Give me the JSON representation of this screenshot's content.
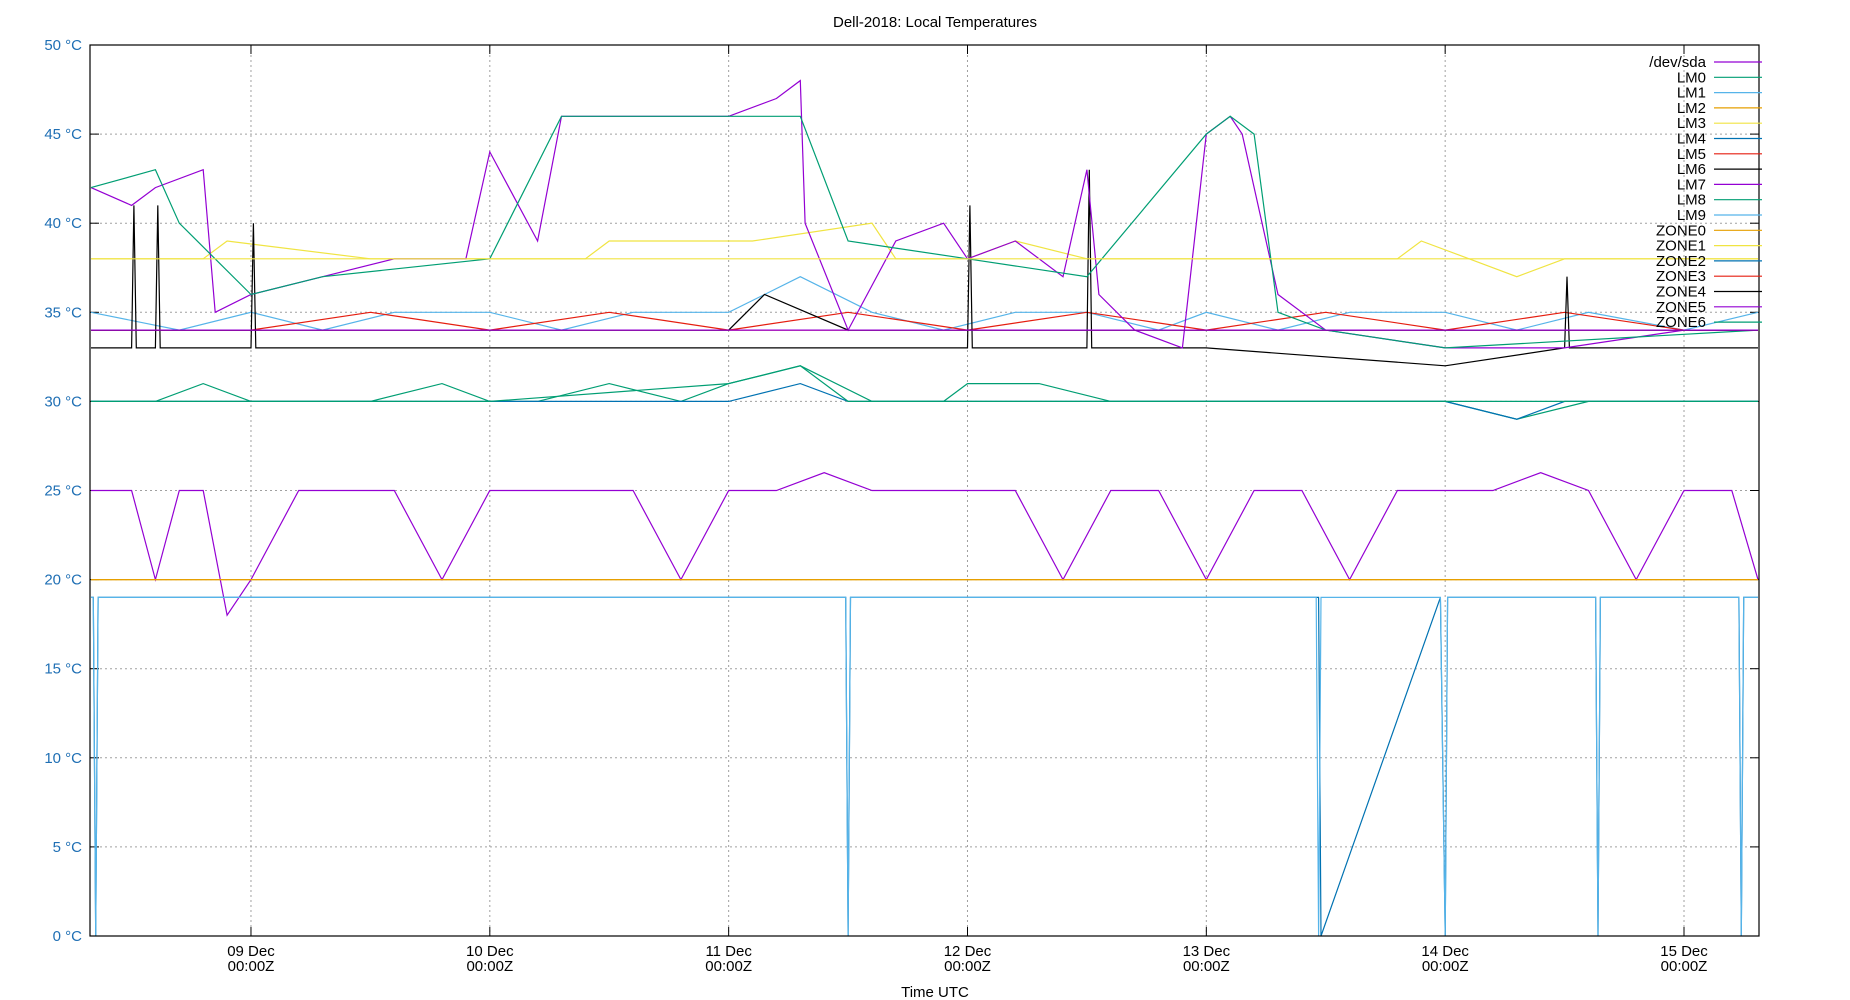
{
  "chart_data": {
    "type": "line",
    "title": "Dell-2018: Local Temperatures",
    "xlabel": "Time UTC",
    "ylabel": "",
    "ylim": [
      0,
      50
    ],
    "y_unit": "°C",
    "yticks": [
      "0 °C",
      "5 °C",
      "10 °C",
      "15 °C",
      "20 °C",
      "25 °C",
      "30 °C",
      "35 °C",
      "40 °C",
      "45 °C",
      "50 °C"
    ],
    "xlim_days": [
      -0.674,
      6.314
    ],
    "xticks": [
      {
        "day": 0,
        "line1": "09 Dec",
        "line2": "00:00Z"
      },
      {
        "day": 1,
        "line1": "10 Dec",
        "line2": "00:00Z"
      },
      {
        "day": 2,
        "line1": "11 Dec",
        "line2": "00:00Z"
      },
      {
        "day": 3,
        "line1": "12 Dec",
        "line2": "00:00Z"
      },
      {
        "day": 4,
        "line1": "13 Dec",
        "line2": "00:00Z"
      },
      {
        "day": 5,
        "line1": "14 Dec",
        "line2": "00:00Z"
      },
      {
        "day": 6,
        "line1": "15 Dec",
        "line2": "00:00Z"
      }
    ],
    "grid": true,
    "legend_position": "top-right-inside",
    "x_note": "x values are days relative to 09 Dec 00:00Z",
    "series": [
      {
        "name": "/dev/sda",
        "color": "#9400d3",
        "x": [
          -0.67,
          -0.5,
          -0.4,
          -0.3,
          -0.2,
          -0.1,
          0.0,
          0.2,
          0.4,
          0.6,
          0.8,
          1.0,
          1.1,
          1.2,
          1.4,
          1.6,
          1.8,
          2.0,
          2.2,
          2.4,
          2.6,
          2.8,
          2.9,
          3.0,
          3.2,
          3.4,
          3.6,
          3.8,
          4.0,
          4.2,
          4.4,
          4.6,
          4.8,
          5.0,
          5.2,
          5.4,
          5.6,
          5.8,
          6.0,
          6.2,
          6.31
        ],
        "y": [
          25,
          25,
          20,
          25,
          25,
          18,
          20,
          25,
          25,
          25,
          20,
          25,
          25,
          25,
          25,
          25,
          20,
          25,
          25,
          26,
          25,
          25,
          25,
          25,
          25,
          20,
          25,
          25,
          20,
          25,
          25,
          20,
          25,
          25,
          25,
          26,
          25,
          20,
          25,
          25,
          20
        ]
      },
      {
        "name": "LM0",
        "color": "#009e73",
        "x": [
          -0.67,
          -0.4,
          -0.2,
          0.0,
          0.2,
          0.5,
          0.8,
          1.0,
          1.2,
          1.5,
          1.8,
          2.0,
          2.3,
          2.6,
          2.9,
          3.0,
          3.3,
          3.6,
          3.9,
          4.0,
          4.3,
          4.6,
          5.0,
          5.3,
          5.6,
          6.0,
          6.31
        ],
        "y": [
          30,
          30,
          31,
          30,
          30,
          30,
          31,
          30,
          30,
          31,
          30,
          31,
          32,
          30,
          30,
          31,
          31,
          30,
          30,
          30,
          30,
          30,
          30,
          29,
          30,
          30,
          30
        ]
      },
      {
        "name": "LM1",
        "color": "#56b4e9",
        "x": [
          -0.67,
          -0.3,
          0.0,
          0.3,
          0.6,
          1.0,
          1.3,
          1.6,
          2.0,
          2.3,
          2.6,
          2.9,
          3.2,
          3.5,
          3.8,
          4.0,
          4.3,
          4.6,
          5.0,
          5.3,
          5.6,
          6.0,
          6.31
        ],
        "y": [
          35,
          34,
          35,
          34,
          35,
          35,
          34,
          35,
          35,
          37,
          35,
          34,
          35,
          35,
          34,
          35,
          34,
          35,
          35,
          34,
          35,
          34,
          35
        ]
      },
      {
        "name": "LM2",
        "color": "#e69f00",
        "x": [
          -0.67,
          6.31
        ],
        "y": [
          20,
          20
        ]
      },
      {
        "name": "LM3",
        "color": "#f0e442",
        "x": [
          -0.67,
          -0.2,
          -0.1,
          0.5,
          1.0,
          1.4,
          1.5,
          2.0,
          2.1,
          2.6,
          2.7,
          3.0,
          3.2,
          3.5,
          4.0,
          4.4,
          4.8,
          4.9,
          5.1,
          5.3,
          5.5,
          6.31
        ],
        "y": [
          38,
          38,
          39,
          38,
          38,
          38,
          39,
          39,
          39,
          40,
          38,
          38,
          39,
          38,
          38,
          38,
          38,
          39,
          38,
          37,
          38,
          38
        ]
      },
      {
        "name": "LM4",
        "color": "#0072b2",
        "x": [
          -0.67,
          -0.66,
          -0.65,
          -0.64,
          0.0,
          2.49,
          2.5,
          2.51,
          4.46,
          4.47,
          4.48,
          4.98,
          5.0,
          5.01,
          5.63,
          5.64,
          5.65,
          6.23,
          6.24,
          6.25,
          6.31
        ],
        "y": [
          19,
          19,
          0,
          19,
          19,
          19,
          0,
          19,
          19,
          19,
          0,
          19,
          0,
          19,
          19,
          0,
          19,
          19,
          0,
          19,
          19
        ]
      },
      {
        "name": "LM5",
        "color": "#e51e10",
        "x": [
          -0.67,
          0.0,
          0.5,
          1.0,
          1.5,
          2.0,
          2.5,
          3.0,
          3.5,
          4.0,
          4.5,
          5.0,
          5.5,
          6.0,
          6.31
        ],
        "y": [
          34,
          34,
          35,
          34,
          35,
          34,
          35,
          34,
          35,
          34,
          35,
          34,
          35,
          34,
          34
        ]
      },
      {
        "name": "LM6",
        "color": "#000000",
        "x": [
          -0.67,
          -0.5,
          -0.49,
          -0.48,
          -0.4,
          -0.39,
          -0.38,
          0.0,
          0.01,
          0.02,
          1.0,
          2.0,
          2.5,
          3.0,
          3.01,
          3.02,
          3.5,
          3.51,
          3.52,
          4.0,
          5.0,
          5.5,
          5.51,
          5.52,
          6.31
        ],
        "y": [
          33,
          33,
          41,
          33,
          33,
          41,
          33,
          33,
          40,
          33,
          33,
          33,
          33,
          33,
          41,
          33,
          33,
          43,
          33,
          33,
          32,
          33,
          37,
          33,
          33
        ]
      },
      {
        "name": "LM7",
        "color": "#9400d3",
        "x": [
          -0.67,
          -0.5,
          -0.4,
          -0.2,
          -0.15,
          0.0,
          0.3,
          0.6,
          0.9,
          1.0,
          1.2,
          1.3,
          1.5,
          1.8,
          2.0,
          2.2,
          2.3,
          2.32,
          2.5,
          2.7,
          2.9,
          3.0,
          3.2,
          3.4,
          3.5,
          3.55,
          3.7,
          3.9,
          4.0,
          4.1,
          4.15,
          4.3,
          4.5,
          5.0,
          5.5,
          6.0,
          6.31
        ],
        "y": [
          42,
          41,
          42,
          43,
          35,
          36,
          37,
          38,
          38,
          44,
          39,
          46,
          46,
          46,
          46,
          47,
          48,
          40,
          34,
          39,
          40,
          38,
          39,
          37,
          43,
          36,
          34,
          33,
          45,
          46,
          45,
          36,
          34,
          33,
          33,
          34,
          34
        ]
      },
      {
        "name": "LM8",
        "color": "#009e73",
        "x": [
          -0.67,
          -0.4,
          -0.3,
          0.0,
          0.3,
          1.0,
          1.3,
          1.6,
          2.0,
          2.3,
          2.5,
          3.0,
          3.5,
          4.0,
          4.1,
          4.2,
          4.3,
          4.5,
          5.0,
          6.31
        ],
        "y": [
          42,
          43,
          40,
          36,
          37,
          38,
          46,
          46,
          46,
          46,
          39,
          38,
          37,
          45,
          46,
          45,
          35,
          34,
          33,
          34
        ]
      },
      {
        "name": "LM9",
        "color": "#56b4e9",
        "x": [
          -0.67,
          -0.66,
          -0.65,
          -0.64,
          0.0,
          0.5,
          1.0,
          1.5,
          2.0,
          2.49,
          2.5,
          2.51,
          3.0,
          4.0,
          4.46,
          4.47,
          4.48,
          4.98,
          5.0,
          5.01,
          5.63,
          5.64,
          5.65,
          6.23,
          6.24,
          6.25,
          6.31
        ],
        "y": [
          19,
          19,
          0,
          19,
          19,
          19,
          19,
          19,
          19,
          19,
          0,
          19,
          19,
          19,
          19,
          0,
          19,
          19,
          0,
          19,
          19,
          0,
          19,
          19,
          0,
          19,
          19
        ]
      },
      {
        "name": "ZONE0",
        "color": "#e69f00",
        "x": [
          -0.67,
          6.31
        ],
        "y": [
          20,
          20
        ]
      },
      {
        "name": "ZONE1",
        "color": "#f0e442",
        "x": [
          -0.67,
          6.31
        ],
        "y": [
          38,
          38
        ]
      },
      {
        "name": "ZONE2",
        "color": "#0072b2",
        "x": [
          -0.67,
          0.0,
          1.0,
          2.0,
          2.3,
          2.5,
          3.0,
          4.0,
          5.0,
          5.3,
          5.5,
          6.31
        ],
        "y": [
          30,
          30,
          30,
          30,
          31,
          30,
          30,
          30,
          30,
          29,
          30,
          30
        ]
      },
      {
        "name": "ZONE3",
        "color": "#e51e10",
        "x": [
          -0.67,
          0.0,
          1.0,
          2.0,
          3.0,
          4.0,
          5.0,
          6.0,
          6.31
        ],
        "y": [
          34,
          34,
          34,
          34,
          34,
          34,
          34,
          34,
          34
        ]
      },
      {
        "name": "ZONE4",
        "color": "#000000",
        "x": [
          -0.67,
          0.0,
          1.0,
          2.0,
          2.15,
          2.5,
          3.0,
          4.0,
          5.0,
          6.0,
          6.31
        ],
        "y": [
          34,
          34,
          34,
          34,
          36,
          34,
          34,
          34,
          34,
          34,
          34
        ]
      },
      {
        "name": "ZONE5",
        "color": "#9400d3",
        "x": [
          -0.67,
          6.31
        ],
        "y": [
          34,
          34
        ]
      },
      {
        "name": "ZONE6",
        "color": "#009e73",
        "x": [
          -0.67,
          0.0,
          1.0,
          2.0,
          2.3,
          2.5,
          3.0,
          4.0,
          5.0,
          6.31
        ],
        "y": [
          30,
          30,
          30,
          31,
          32,
          30,
          30,
          30,
          30,
          30
        ]
      }
    ]
  }
}
